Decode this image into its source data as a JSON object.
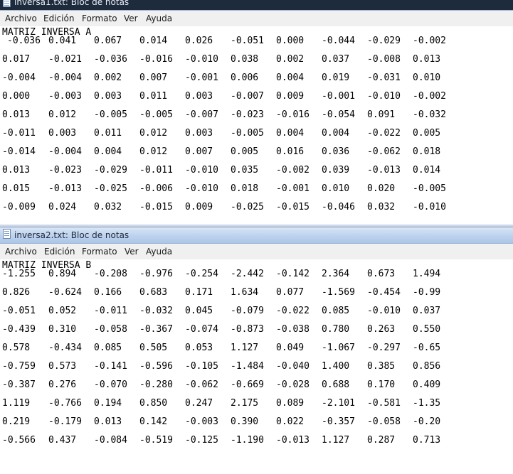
{
  "window1": {
    "title": "inversa1.txt: Bloc de notas",
    "menu": [
      "Archivo",
      "Edición",
      "Formato",
      "Ver",
      "Ayuda"
    ],
    "heading": "MATRIZ INVERSA A",
    "rows": [
      [
        "-0.036",
        "0.041",
        "0.067",
        "0.014",
        "0.026",
        "-0.051",
        "0.000",
        "-0.044",
        "-0.029",
        "-0.002"
      ],
      [
        "0.017",
        "-0.021",
        "-0.036",
        "-0.016",
        "-0.010",
        "0.038",
        "0.002",
        "0.037",
        "-0.008",
        "0.013"
      ],
      [
        "-0.004",
        "-0.004",
        "0.002",
        "0.007",
        "-0.001",
        "0.006",
        "0.004",
        "0.019",
        "-0.031",
        "0.010"
      ],
      [
        "0.000",
        "-0.003",
        "0.003",
        "0.011",
        "0.003",
        "-0.007",
        "0.009",
        "-0.001",
        "-0.010",
        "-0.002"
      ],
      [
        "0.013",
        "0.012",
        "-0.005",
        "-0.005",
        "-0.007",
        "-0.023",
        "-0.016",
        "-0.054",
        "0.091",
        "-0.032"
      ],
      [
        "-0.011",
        "0.003",
        "0.011",
        "0.012",
        "0.003",
        "-0.005",
        "0.004",
        "0.004",
        "-0.022",
        "0.005"
      ],
      [
        "-0.014",
        "-0.004",
        "0.004",
        "0.012",
        "0.007",
        "0.005",
        "0.016",
        "0.036",
        "-0.062",
        "0.018"
      ],
      [
        "0.013",
        "-0.023",
        "-0.029",
        "-0.011",
        "-0.010",
        "0.035",
        "-0.002",
        "0.039",
        "-0.013",
        "0.014"
      ],
      [
        "0.015",
        "-0.013",
        "-0.025",
        "-0.006",
        "-0.010",
        "0.018",
        "-0.001",
        "0.010",
        "0.020",
        "-0.005"
      ],
      [
        "-0.009",
        "0.024",
        "0.032",
        "-0.015",
        "0.009",
        "-0.025",
        "-0.015",
        "-0.046",
        "0.032",
        "-0.010"
      ]
    ]
  },
  "window2": {
    "title": "inversa2.txt: Bloc de notas",
    "menu": [
      "Archivo",
      "Edición",
      "Formato",
      "Ver",
      "Ayuda"
    ],
    "heading": "MATRIZ INVERSA B",
    "rows": [
      [
        "-1.255",
        "0.894",
        "-0.208",
        "-0.976",
        "-0.254",
        "-2.442",
        "-0.142",
        "2.364",
        "0.673",
        "1.494"
      ],
      [
        "0.826",
        "-0.624",
        "0.166",
        "0.683",
        "0.171",
        "1.634",
        "0.077",
        "-1.569",
        "-0.454",
        "-0.99"
      ],
      [
        "-0.051",
        "0.052",
        "-0.011",
        "-0.032",
        "0.045",
        "-0.079",
        "-0.022",
        "0.085",
        "-0.010",
        "0.037"
      ],
      [
        "-0.439",
        "0.310",
        "-0.058",
        "-0.367",
        "-0.074",
        "-0.873",
        "-0.038",
        "0.780",
        "0.263",
        "0.550"
      ],
      [
        "0.578",
        "-0.434",
        "0.085",
        "0.505",
        "0.053",
        "1.127",
        "0.049",
        "-1.067",
        "-0.297",
        "-0.65"
      ],
      [
        "-0.759",
        "0.573",
        "-0.141",
        "-0.596",
        "-0.105",
        "-1.484",
        "-0.040",
        "1.400",
        "0.385",
        "0.856"
      ],
      [
        "-0.387",
        "0.276",
        "-0.070",
        "-0.280",
        "-0.062",
        "-0.669",
        "-0.028",
        "0.688",
        "0.170",
        "0.409"
      ],
      [
        "1.119",
        "-0.766",
        "0.194",
        "0.850",
        "0.247",
        "2.175",
        "0.089",
        "-2.101",
        "-0.581",
        "-1.35"
      ],
      [
        "0.219",
        "-0.179",
        "0.013",
        "0.142",
        "-0.003",
        "0.390",
        "0.022",
        "-0.357",
        "-0.058",
        "-0.20"
      ],
      [
        "-0.566",
        "0.437",
        "-0.084",
        "-0.519",
        "-0.125",
        "-1.190",
        "-0.013",
        "1.127",
        "0.287",
        "0.713"
      ]
    ]
  }
}
